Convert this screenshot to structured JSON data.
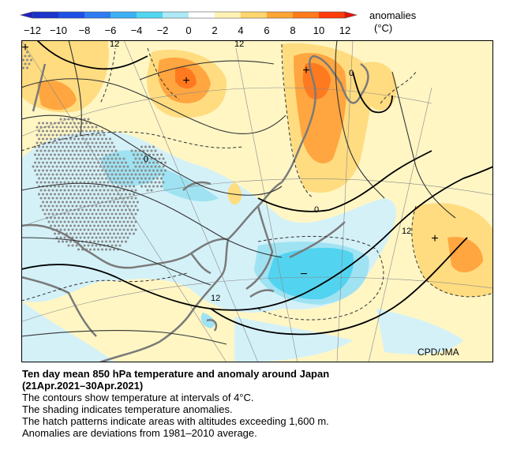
{
  "legend": {
    "title": "anomalies",
    "unit": "(°C)",
    "ticks": [
      "−12",
      "−10",
      "−8",
      "−6",
      "−4",
      "−2",
      "0",
      "2",
      "4",
      "6",
      "8",
      "10",
      "12"
    ],
    "colors": [
      "#1a33cc",
      "#1e4fe6",
      "#2e7bf2",
      "#3bb0f5",
      "#50d6f0",
      "#aee9f6",
      "#ffffff",
      "#fff2b3",
      "#ffd66b",
      "#ffa533",
      "#ff7a1a",
      "#ff3b0a"
    ]
  },
  "map": {
    "contour_labels": [
      "12",
      "12",
      "0",
      "0",
      "0",
      "12",
      "12",
      "0"
    ],
    "symbols": [
      "+",
      "+",
      "+",
      "+",
      "−"
    ],
    "credit": "CPD/JMA"
  },
  "caption": {
    "title_line1": "Ten day mean 850 hPa temperature and anomaly around Japan",
    "title_line2": "(21Apr.2021–30Apr.2021)",
    "line1": "The contours show temperature at intervals of 4°C.",
    "line2": "The shading indicates temperature anomalies.",
    "line3": "The hatch patterns indicate areas with altitudes exceeding 1,600 m.",
    "line4": "Anomalies are deviations from 1981–2010 average."
  }
}
